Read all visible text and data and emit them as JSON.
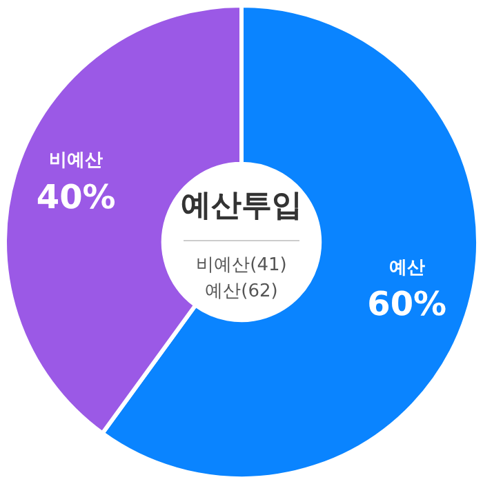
{
  "chart_data": {
    "type": "donut",
    "categories": [
      "예산",
      "비예산"
    ],
    "values": [
      60,
      40
    ],
    "value_labels": [
      "60%",
      "40%"
    ],
    "colors": [
      "#0a84ff",
      "#9b59e6"
    ],
    "annotations": [
      "예산투입",
      "비예산(41)",
      "예산(62)"
    ],
    "legend": false
  }
}
